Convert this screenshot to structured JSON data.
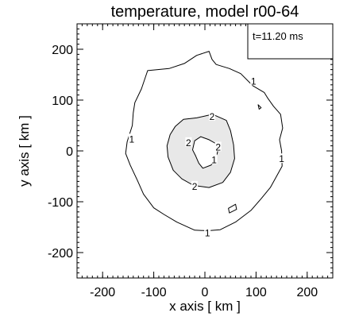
{
  "chart_data": {
    "type": "contour",
    "title": "temperature, model r00-64",
    "xlabel": "x axis [ km ]",
    "ylabel": "y axis [ km ]",
    "xlim": [
      -250,
      250
    ],
    "ylim": [
      -250,
      250
    ],
    "xticks": [
      -200,
      -100,
      0,
      100,
      200
    ],
    "yticks": [
      -200,
      -100,
      0,
      100,
      200
    ],
    "annotation": "t=11.20 ms",
    "colors": {
      "line": "#000000",
      "fill_level_2": "#e8e8e8",
      "background": "#ffffff"
    },
    "contours": [
      {
        "level": "1",
        "filled": false,
        "points": [
          [
            -112,
            158
          ],
          [
            -70,
            162
          ],
          [
            -40,
            172
          ],
          [
            -16,
            188
          ],
          [
            8,
            196
          ],
          [
            14,
            180
          ],
          [
            22,
            170
          ],
          [
            48,
            162
          ],
          [
            70,
            152
          ],
          [
            94,
            128
          ],
          [
            116,
            115
          ],
          [
            122,
            105
          ],
          [
            134,
            88
          ],
          [
            148,
            72
          ],
          [
            152,
            45
          ],
          [
            146,
            22
          ],
          [
            150,
            0
          ],
          [
            151,
            -30
          ],
          [
            140,
            -50
          ],
          [
            128,
            -72
          ],
          [
            110,
            -94
          ],
          [
            90,
            -117
          ],
          [
            60,
            -140
          ],
          [
            30,
            -155
          ],
          [
            5,
            -157
          ],
          [
            -20,
            -156
          ],
          [
            -55,
            -140
          ],
          [
            -80,
            -125
          ],
          [
            -100,
            -112
          ],
          [
            -120,
            -85
          ],
          [
            -132,
            -58
          ],
          [
            -146,
            -28
          ],
          [
            -155,
            -5
          ],
          [
            -152,
            18
          ],
          [
            -142,
            50
          ],
          [
            -140,
            75
          ],
          [
            -137,
            95
          ],
          [
            -124,
            122
          ],
          [
            -112,
            158
          ]
        ]
      },
      {
        "level": "1",
        "filled": false,
        "points": [
          [
            46,
            -113
          ],
          [
            60,
            -105
          ],
          [
            62,
            -115
          ],
          [
            48,
            -122
          ],
          [
            46,
            -113
          ]
        ]
      },
      {
        "level": "1",
        "filled": false,
        "points": [
          [
            104,
            91
          ],
          [
            110,
            85
          ],
          [
            106,
            82
          ],
          [
            104,
            91
          ]
        ]
      },
      {
        "level": "2",
        "filled": true,
        "points": [
          [
            -16,
            65
          ],
          [
            15,
            72
          ],
          [
            42,
            60
          ],
          [
            50,
            40
          ],
          [
            56,
            12
          ],
          [
            58,
            -15
          ],
          [
            50,
            -42
          ],
          [
            35,
            -62
          ],
          [
            8,
            -72
          ],
          [
            -22,
            -68
          ],
          [
            -45,
            -55
          ],
          [
            -62,
            -38
          ],
          [
            -72,
            -12
          ],
          [
            -74,
            10
          ],
          [
            -68,
            32
          ],
          [
            -58,
            48
          ],
          [
            -42,
            62
          ],
          [
            -16,
            65
          ]
        ]
      },
      {
        "level": "2",
        "filled": false,
        "fill": "background",
        "points": [
          [
            -20,
            20
          ],
          [
            -8,
            28
          ],
          [
            8,
            22
          ],
          [
            22,
            14
          ],
          [
            25,
            0
          ],
          [
            22,
            -16
          ],
          [
            12,
            -28
          ],
          [
            -4,
            -34
          ],
          [
            -12,
            -24
          ],
          [
            -18,
            -10
          ],
          [
            -24,
            2
          ],
          [
            -20,
            20
          ]
        ]
      }
    ],
    "contour_labels": [
      {
        "text": "1",
        "x": 95,
        "y": 137
      },
      {
        "text": "1",
        "x": -143,
        "y": 23
      },
      {
        "text": "1",
        "x": 150,
        "y": -16
      },
      {
        "text": "1",
        "x": 5,
        "y": -162
      },
      {
        "text": "2",
        "x": 14,
        "y": 67
      },
      {
        "text": "2",
        "x": -32,
        "y": 16
      },
      {
        "text": "2",
        "x": 26,
        "y": 7
      },
      {
        "text": "2",
        "x": -20,
        "y": -70
      },
      {
        "text": "1",
        "x": 18,
        "y": -18
      }
    ]
  }
}
